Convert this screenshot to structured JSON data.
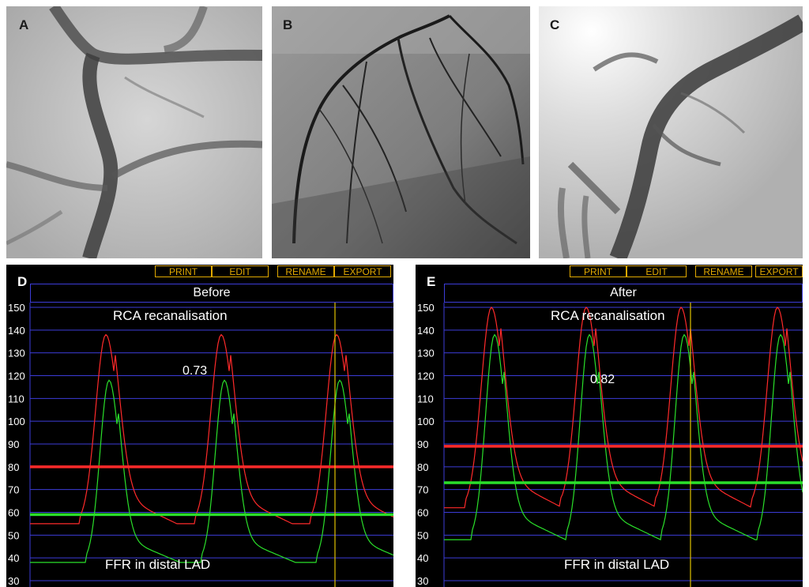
{
  "panels_top": [
    {
      "letter": "A"
    },
    {
      "letter": "B"
    },
    {
      "letter": "C"
    }
  ],
  "monitors": [
    {
      "letter": "D",
      "title": "Before",
      "top_label": "RCA recanalisation",
      "bottom_label": "FFR in distal LAD",
      "ffr_value": "0.73",
      "buttons": [
        "PRINT",
        "EDIT",
        "RENAME",
        "EXPORT"
      ],
      "y_ticks": [
        "150",
        "140",
        "130",
        "120",
        "110",
        "100",
        "90",
        "80",
        "70",
        "60",
        "50",
        "40",
        "30"
      ],
      "colors": {
        "aortic": "#ff2a2a",
        "distal": "#2adf2a",
        "cursor": "#e0c000",
        "grid": "#3c3cd8"
      },
      "aortic_mean": 80,
      "distal_mean": 59,
      "ratio": "0.73"
    },
    {
      "letter": "E",
      "title": "After",
      "top_label": "RCA recanalisation",
      "bottom_label": "FFR in distal LAD",
      "ffr_value": "0.82",
      "buttons": [
        "PRINT",
        "EDIT",
        "RENAME",
        "EXPORT"
      ],
      "y_ticks": [
        "150",
        "140",
        "130",
        "120",
        "110",
        "100",
        "90",
        "80",
        "70",
        "60",
        "50",
        "40",
        "30"
      ],
      "colors": {
        "aortic": "#ff2a2a",
        "distal": "#2adf2a",
        "cursor": "#e0c000",
        "grid": "#3c3cd8"
      },
      "aortic_mean": 89,
      "distal_mean": 73,
      "ratio": "0.82"
    }
  ]
}
